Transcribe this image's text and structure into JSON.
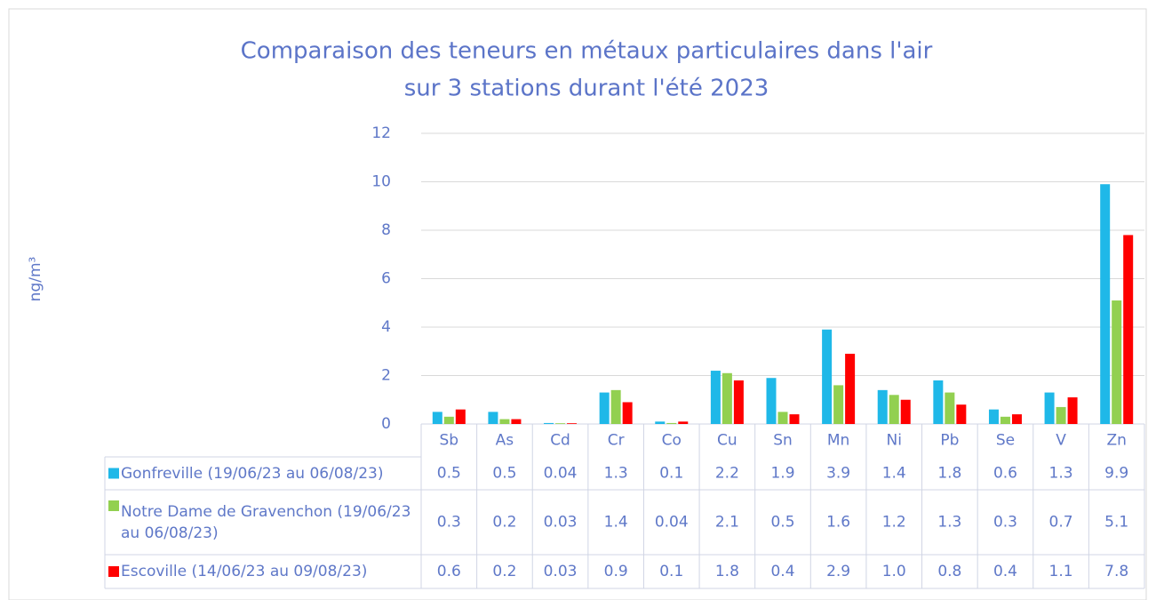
{
  "chart_data": {
    "type": "bar",
    "title": [
      "Comparaison des teneurs en métaux particulaires dans l'air",
      "sur 3 stations durant l'été 2023"
    ],
    "y_label": "ng/m³",
    "categories": [
      "Sb",
      "As",
      "Cd",
      "Cr",
      "Co",
      "Cu",
      "Sn",
      "Mn",
      "Ni",
      "Pb",
      "Se",
      "V",
      "Zn"
    ],
    "series": [
      {
        "name": "Gonfreville (19/06/23 au 06/08/23)",
        "color": "#1fb8e8",
        "values": [
          0.5,
          0.5,
          0.04,
          1.3,
          0.1,
          2.2,
          1.9,
          3.9,
          1.4,
          1.8,
          0.6,
          1.3,
          9.9
        ],
        "value_labels": [
          "0.5",
          "0.5",
          "0.04",
          "1.3",
          "0.1",
          "2.2",
          "1.9",
          "3.9",
          "1.4",
          "1.8",
          "0.6",
          "1.3",
          "9.9"
        ]
      },
      {
        "name": "Notre Dame de Gravenchon (19/06/23 au 06/08/23)",
        "color": "#92d050",
        "values": [
          0.3,
          0.2,
          0.03,
          1.4,
          0.04,
          2.1,
          0.5,
          1.6,
          1.2,
          1.3,
          0.3,
          0.7,
          5.1
        ],
        "value_labels": [
          "0.3",
          "0.2",
          "0.03",
          "1.4",
          "0.04",
          "2.1",
          "0.5",
          "1.6",
          "1.2",
          "1.3",
          "0.3",
          "0.7",
          "5.1"
        ]
      },
      {
        "name": "Escoville (14/06/23 au 09/08/23)",
        "color": "#ff0000",
        "values": [
          0.6,
          0.2,
          0.03,
          0.9,
          0.1,
          1.8,
          0.4,
          2.9,
          1,
          0.8,
          0.4,
          1.1,
          7.8
        ],
        "value_labels": [
          "0.6",
          "0.2",
          "0.03",
          "0.9",
          "0.1",
          "1.8",
          "0.4",
          "2.9",
          "1.0",
          "0.8",
          "0.4",
          "1.1",
          "7.8"
        ]
      }
    ],
    "ylim": [
      0,
      12
    ],
    "yticks": [
      0,
      2,
      4,
      6,
      8,
      10,
      12
    ],
    "grid": true
  }
}
